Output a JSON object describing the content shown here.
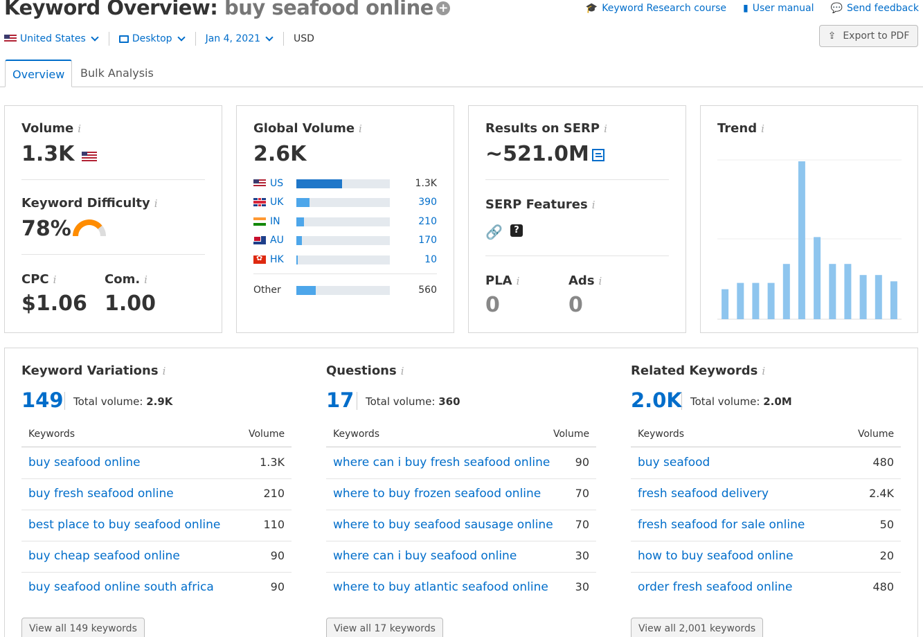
{
  "header": {
    "title_prefix": "Keyword Overview:",
    "keyword": "buy seafood online",
    "links": [
      "Keyword Research course",
      "User manual",
      "Send feedback"
    ],
    "export_label": "Export to PDF"
  },
  "filters": {
    "country": "United States",
    "device": "Desktop",
    "date": "Jan 4, 2021",
    "currency": "USD"
  },
  "tabs": [
    "Overview",
    "Bulk Analysis"
  ],
  "volume": {
    "label": "Volume",
    "value": "1.3K"
  },
  "difficulty": {
    "label": "Keyword Difficulty",
    "value": "78%",
    "percent": 78
  },
  "cpc": {
    "label": "CPC",
    "value": "$1.06"
  },
  "competition": {
    "label": "Com.",
    "value": "1.00"
  },
  "global_volume": {
    "label": "Global Volume",
    "value": "2.6K",
    "countries": [
      {
        "code": "US",
        "value": "1.3K",
        "share": 0.49
      },
      {
        "code": "UK",
        "value": "390",
        "share": 0.14
      },
      {
        "code": "IN",
        "value": "210",
        "share": 0.08
      },
      {
        "code": "AU",
        "value": "170",
        "share": 0.06
      },
      {
        "code": "HK",
        "value": "10",
        "share": 0.01
      }
    ],
    "other": {
      "label": "Other",
      "value": "560",
      "share": 0.21
    }
  },
  "serp": {
    "results_label": "Results on SERP",
    "results_value": "~521.0M",
    "features_label": "SERP Features",
    "pla_label": "PLA",
    "pla_value": "0",
    "ads_label": "Ads",
    "ads_value": "0"
  },
  "trend": {
    "label": "Trend",
    "values": [
      0.19,
      0.23,
      0.23,
      0.23,
      0.35,
      1.0,
      0.52,
      0.35,
      0.35,
      0.28,
      0.28,
      0.24
    ]
  },
  "variations": {
    "label": "Keyword Variations",
    "count": "149",
    "total_label": "Total volume:",
    "total_value": "2.9K",
    "col_keywords": "Keywords",
    "col_volume": "Volume",
    "rows": [
      {
        "keyword": "buy seafood online",
        "volume": "1.3K"
      },
      {
        "keyword": "buy fresh seafood online",
        "volume": "210"
      },
      {
        "keyword": "best place to buy seafood online",
        "volume": "110"
      },
      {
        "keyword": "buy cheap seafood online",
        "volume": "90"
      },
      {
        "keyword": "buy seafood online south africa",
        "volume": "90"
      }
    ],
    "view_all": "View all 149 keywords"
  },
  "questions": {
    "label": "Questions",
    "count": "17",
    "total_label": "Total volume:",
    "total_value": "360",
    "col_keywords": "Keywords",
    "col_volume": "Volume",
    "rows": [
      {
        "keyword": "where can i buy fresh seafood online",
        "volume": "90"
      },
      {
        "keyword": "where to buy frozen seafood online",
        "volume": "70"
      },
      {
        "keyword": "where to buy seafood sausage online",
        "volume": "70"
      },
      {
        "keyword": "where can i buy seafood online",
        "volume": "30"
      },
      {
        "keyword": "where to buy atlantic seafood online",
        "volume": "30"
      }
    ],
    "view_all": "View all 17 keywords"
  },
  "related": {
    "label": "Related Keywords",
    "count": "2.0K",
    "total_label": "Total volume:",
    "total_value": "2.0M",
    "col_keywords": "Keywords",
    "col_volume": "Volume",
    "rows": [
      {
        "keyword": "buy seafood",
        "volume": "480"
      },
      {
        "keyword": "fresh seafood delivery",
        "volume": "2.4K"
      },
      {
        "keyword": "fresh seafood for sale online",
        "volume": "50"
      },
      {
        "keyword": "how to buy seafood online",
        "volume": "20"
      },
      {
        "keyword": "order fresh seafood online",
        "volume": "480"
      }
    ],
    "view_all": "View all 2,001 keywords"
  },
  "colors": {
    "link": "#006dca",
    "trend_bar": "#8ec5ee",
    "difficulty": "#ff8c00"
  }
}
